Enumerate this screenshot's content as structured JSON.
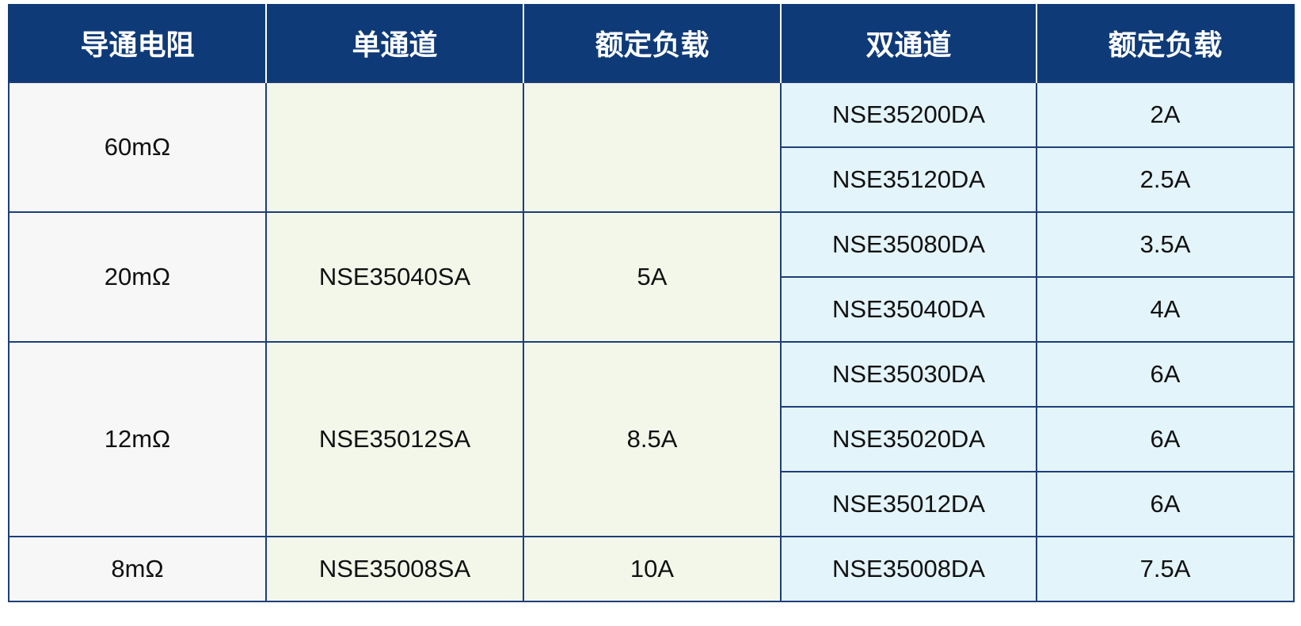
{
  "table": {
    "header": [
      "导通电阻",
      "单通道",
      "额定负载",
      "双通道",
      "额定负载"
    ],
    "groups": [
      {
        "resistance": "60mΩ",
        "dual": [
          {
            "part": "NSE35200DA",
            "load": "2A"
          },
          {
            "part": "NSE35120DA",
            "load": "2.5A"
          }
        ]
      },
      {
        "resistance": "20mΩ",
        "single_part": "NSE35040SA",
        "single_load": "5A",
        "dual": [
          {
            "part": "NSE35080DA",
            "load": "3.5A"
          },
          {
            "part": "NSE35040DA",
            "load": "4A"
          }
        ]
      },
      {
        "resistance": "12mΩ",
        "single_part": "NSE35012SA",
        "single_load": "8.5A",
        "dual": [
          {
            "part": "NSE35030DA",
            "load": "6A"
          },
          {
            "part": "NSE35020DA",
            "load": "6A"
          },
          {
            "part": "NSE35012DA",
            "load": "6A"
          }
        ]
      },
      {
        "resistance": "8mΩ",
        "single_part": "NSE35008SA",
        "single_load": "10A",
        "dual": [
          {
            "part": "NSE35008DA",
            "load": "7.5A"
          }
        ]
      }
    ]
  }
}
